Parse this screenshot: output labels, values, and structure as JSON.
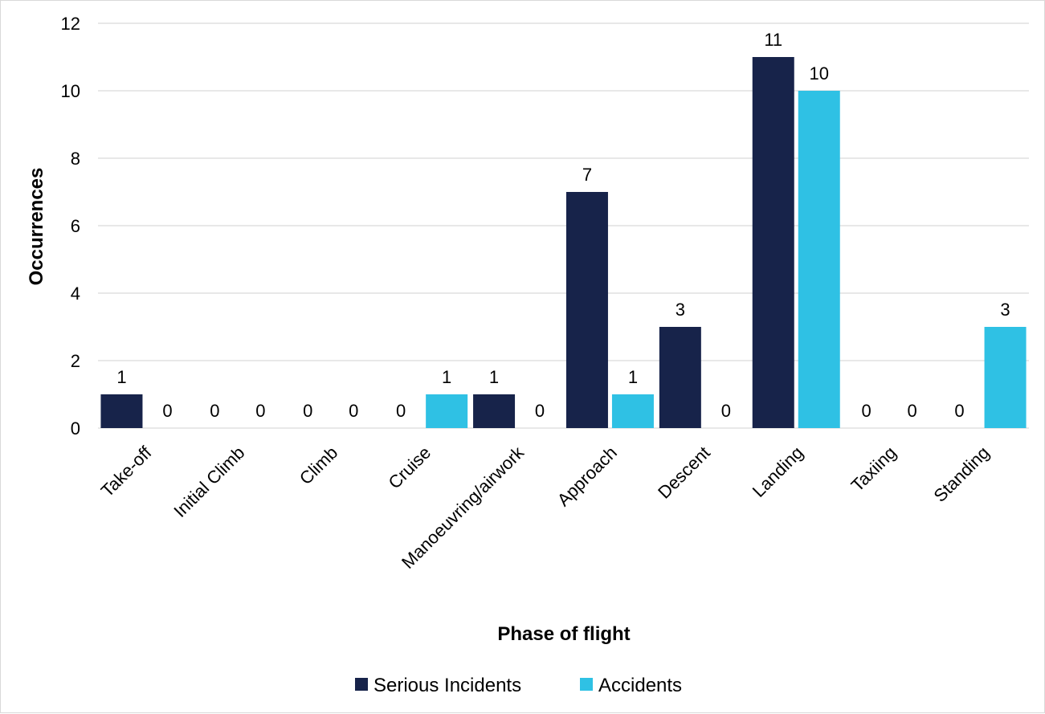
{
  "chart_data": {
    "type": "bar",
    "title": "",
    "xlabel": "Phase of flight",
    "ylabel": "Occurrences",
    "ylim": [
      0,
      12
    ],
    "yticks": [
      0,
      2,
      4,
      6,
      8,
      10,
      12
    ],
    "grid": true,
    "legend_position": "bottom",
    "categories": [
      "Take-off",
      "Initial Climb",
      "Climb",
      "Cruise",
      "Manoeuvring/airwork",
      "Approach",
      "Descent",
      "Landing",
      "Taxiing",
      "Standing"
    ],
    "series": [
      {
        "name": "Serious Incidents",
        "color": "#17234a",
        "values": [
          1,
          0,
          0,
          0,
          1,
          7,
          3,
          11,
          0,
          0
        ]
      },
      {
        "name": "Accidents",
        "color": "#2fc1e4",
        "values": [
          0,
          0,
          0,
          1,
          0,
          1,
          0,
          10,
          0,
          3
        ]
      }
    ]
  }
}
